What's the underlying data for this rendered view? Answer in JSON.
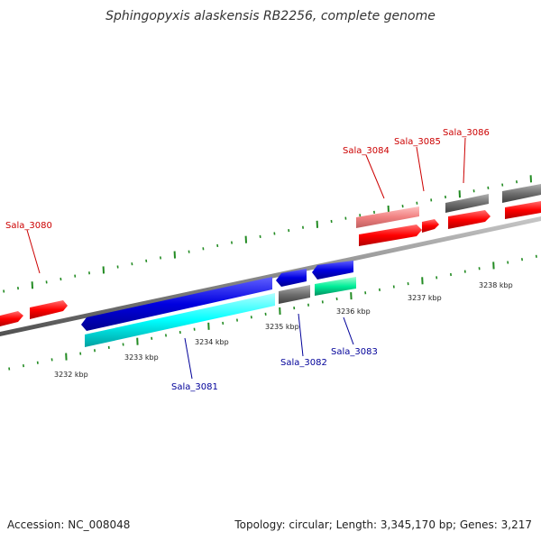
{
  "header": {
    "title": "Sphingopyxis alaskensis RB2256, complete genome"
  },
  "footer": {
    "accession": "Accession: NC_008048",
    "summary": "Topology: circular; Length: 3,345,170 bp; Genes: 3,217"
  },
  "colors": {
    "forward_strand": "#ff0000",
    "forward_light": "#f08080",
    "reverse_strand": "#0000e0",
    "reverse_cyan": "#00ffff",
    "reverse_green": "#00ee99",
    "gray_feature": "#707070",
    "backbone": "#888888",
    "tick_green": "#228b22",
    "forward_label": "#cc0000",
    "reverse_label": "#000099"
  },
  "kbp_labels": [
    {
      "id": "k3232",
      "text": "3232 kbp"
    },
    {
      "id": "k3233",
      "text": "3233 kbp"
    },
    {
      "id": "k3234",
      "text": "3234 kbp"
    },
    {
      "id": "k3235",
      "text": "3235 kbp"
    },
    {
      "id": "k3236",
      "text": "3236 kbp"
    },
    {
      "id": "k3237",
      "text": "3237 kbp"
    },
    {
      "id": "k3238",
      "text": "3238 kbp"
    }
  ],
  "gene_labels": [
    {
      "id": "g3080",
      "text": "Sala_3080",
      "strand": "forward"
    },
    {
      "id": "g3081",
      "text": "Sala_3081",
      "strand": "reverse"
    },
    {
      "id": "g3082",
      "text": "Sala_3082",
      "strand": "reverse"
    },
    {
      "id": "g3083",
      "text": "Sala_3083",
      "strand": "reverse"
    },
    {
      "id": "g3084",
      "text": "Sala_3084",
      "strand": "forward"
    },
    {
      "id": "g3085",
      "text": "Sala_3085",
      "strand": "forward"
    },
    {
      "id": "g3086",
      "text": "Sala_3086",
      "strand": "forward"
    }
  ]
}
